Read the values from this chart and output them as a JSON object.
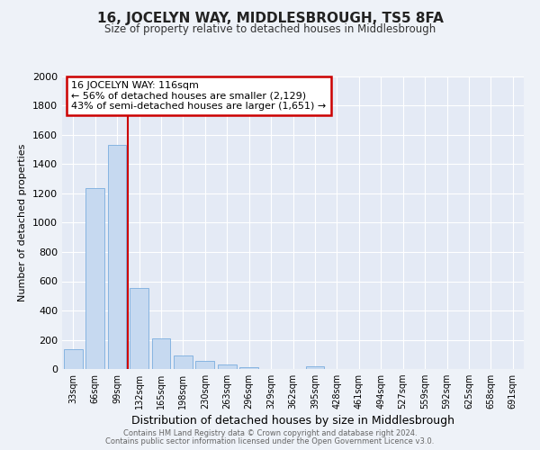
{
  "title": "16, JOCELYN WAY, MIDDLESBROUGH, TS5 8FA",
  "subtitle": "Size of property relative to detached houses in Middlesbrough",
  "xlabel": "Distribution of detached houses by size in Middlesbrough",
  "ylabel": "Number of detached properties",
  "categories": [
    "33sqm",
    "66sqm",
    "99sqm",
    "132sqm",
    "165sqm",
    "198sqm",
    "230sqm",
    "263sqm",
    "296sqm",
    "329sqm",
    "362sqm",
    "395sqm",
    "428sqm",
    "461sqm",
    "494sqm",
    "527sqm",
    "559sqm",
    "592sqm",
    "625sqm",
    "658sqm",
    "691sqm"
  ],
  "values": [
    135,
    1235,
    1530,
    555,
    210,
    92,
    53,
    28,
    10,
    0,
    0,
    18,
    0,
    0,
    0,
    0,
    0,
    0,
    0,
    0,
    0
  ],
  "bar_color": "#c6d9f0",
  "bar_edge_color": "#7aadde",
  "vline_color": "#cc0000",
  "annotation_title": "16 JOCELYN WAY: 116sqm",
  "annotation_line1": "← 56% of detached houses are smaller (2,129)",
  "annotation_line2": "43% of semi-detached houses are larger (1,651) →",
  "annotation_box_color": "#cc0000",
  "ylim": [
    0,
    2000
  ],
  "yticks": [
    0,
    200,
    400,
    600,
    800,
    1000,
    1200,
    1400,
    1600,
    1800,
    2000
  ],
  "footer_line1": "Contains HM Land Registry data © Crown copyright and database right 2024.",
  "footer_line2": "Contains public sector information licensed under the Open Government Licence v3.0.",
  "background_color": "#eef2f8",
  "plot_background": "#e4eaf5"
}
